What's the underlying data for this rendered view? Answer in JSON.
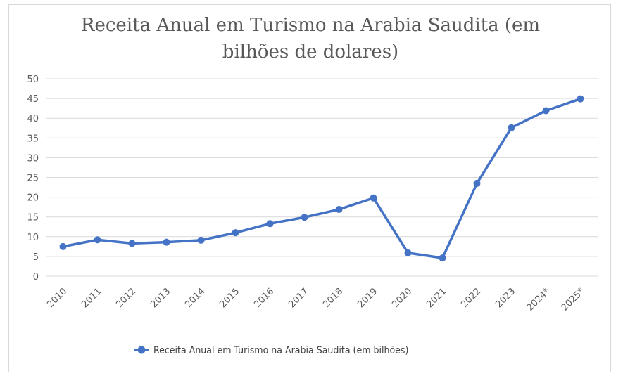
{
  "chart_data": {
    "type": "line",
    "title_line1": "Receita Anual em Turismo na Arabia Saudita (em",
    "title_line2": "bilhões de dolares)",
    "categories": [
      "2010",
      "2011",
      "2012",
      "2013",
      "2014",
      "2015",
      "2016",
      "2017",
      "2018",
      "2019",
      "2020",
      "2021",
      "2022",
      "2023",
      "2024*",
      "2025*"
    ],
    "series": [
      {
        "name": "Receita Anual em Turismo na Arabia Saudita (em bilhões)",
        "values": [
          7.5,
          9.2,
          8.3,
          8.6,
          9.1,
          11.0,
          13.3,
          14.9,
          16.9,
          19.8,
          5.9,
          4.6,
          23.5,
          37.6,
          41.9,
          44.9
        ]
      }
    ],
    "ylim": [
      0,
      50
    ],
    "yticks": [
      0,
      5,
      10,
      15,
      20,
      25,
      30,
      35,
      40,
      45,
      50
    ],
    "grid": true,
    "legend_position": "bottom",
    "series_color": "#4472c4",
    "grid_color": "#d9d9d9",
    "text_color": "#595959"
  }
}
